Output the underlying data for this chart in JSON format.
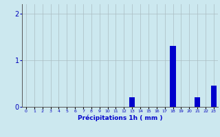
{
  "hours": [
    0,
    1,
    2,
    3,
    4,
    5,
    6,
    7,
    8,
    9,
    10,
    11,
    12,
    13,
    14,
    15,
    16,
    17,
    18,
    19,
    20,
    21,
    22,
    23
  ],
  "values": [
    0,
    0,
    0,
    0,
    0,
    0,
    0,
    0,
    0,
    0,
    0,
    0,
    0,
    0.2,
    0,
    0,
    0,
    0,
    1.3,
    0,
    0,
    0.2,
    0,
    0.45
  ],
  "bar_color": "#0000cc",
  "background_color": "#cce8ef",
  "grid_color": "#aabcc2",
  "axis_color": "#555555",
  "xlabel": "Précipitations 1h ( mm )",
  "xlabel_color": "#0000cc",
  "tick_color": "#0000bb",
  "ylim": [
    0,
    2.2
  ],
  "yticks": [
    0,
    1,
    2
  ],
  "xlim": [
    -0.5,
    23.5
  ],
  "bar_width": 0.7
}
